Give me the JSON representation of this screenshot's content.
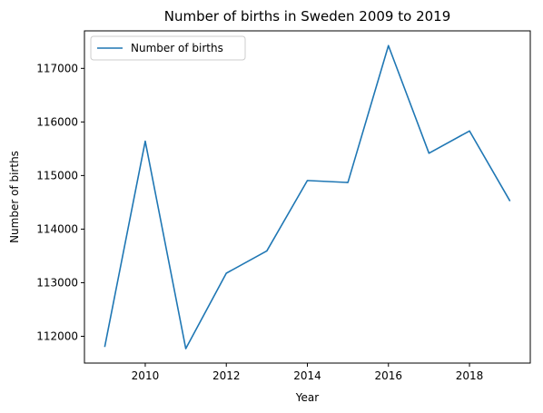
{
  "chart_data": {
    "type": "line",
    "title": "Number of births in Sweden 2009 to 2019",
    "xlabel": "Year",
    "ylabel": "Number of births",
    "xlim": [
      2008.5,
      2019.5
    ],
    "ylim": [
      111500,
      117700
    ],
    "x_ticks": [
      2010,
      2012,
      2014,
      2016,
      2018
    ],
    "y_ticks": [
      112000,
      113000,
      114000,
      115000,
      116000,
      117000
    ],
    "grid": false,
    "legend_placement": "top-left",
    "series": [
      {
        "name": "Number of births",
        "color": "#1f77b4",
        "x": [
          2009,
          2010,
          2011,
          2012,
          2013,
          2014,
          2015,
          2016,
          2017,
          2018,
          2019
        ],
        "y": [
          111801,
          115641,
          111770,
          113177,
          113593,
          114907,
          114870,
          117425,
          115416,
          115832,
          114523
        ]
      }
    ]
  }
}
